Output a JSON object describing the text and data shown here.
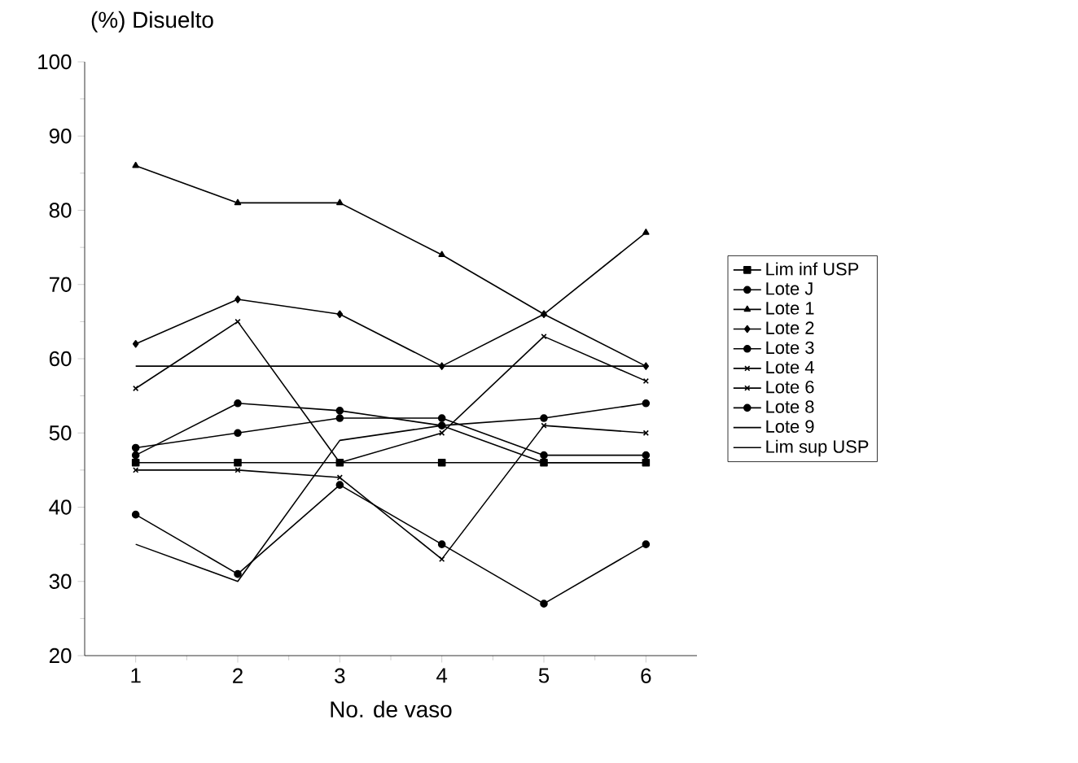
{
  "chart_data": {
    "type": "line",
    "ylabel": "(%) Disuelto",
    "xlabel": "No. de vaso",
    "x": [
      1,
      2,
      3,
      4,
      5,
      6
    ],
    "xlim": [
      0.5,
      6.5
    ],
    "xticks": [
      1,
      2,
      3,
      4,
      5,
      6
    ],
    "ylim": [
      20,
      100
    ],
    "yticks": [
      20,
      30,
      40,
      50,
      60,
      70,
      80,
      90,
      100
    ],
    "grid": false,
    "legend": "right",
    "series": [
      {
        "name": "Lim inf USP",
        "color": "#000000",
        "marker": "square",
        "values": [
          46,
          46,
          46,
          46,
          46,
          46
        ]
      },
      {
        "name": "Lote J",
        "color": "#000000",
        "marker": "circle",
        "values": [
          48,
          50,
          52,
          52,
          47,
          47
        ]
      },
      {
        "name": "Lote 1",
        "color": "#000000",
        "marker": "triangle",
        "values": [
          86,
          81,
          81,
          74,
          66,
          77
        ]
      },
      {
        "name": "Lote 2",
        "color": "#000000",
        "marker": "diamond",
        "values": [
          62,
          68,
          66,
          59,
          66,
          59
        ]
      },
      {
        "name": "Lote 3",
        "color": "#000000",
        "marker": "circle",
        "values": [
          39,
          31,
          43,
          35,
          27,
          35
        ]
      },
      {
        "name": "Lote 4",
        "color": "#000000",
        "marker": "cross",
        "values": [
          56,
          65,
          46,
          50,
          63,
          57
        ]
      },
      {
        "name": "Lote 6",
        "color": "#000000",
        "marker": "cross",
        "values": [
          45,
          45,
          44,
          33,
          51,
          50
        ]
      },
      {
        "name": "Lote 8",
        "color": "#000000",
        "marker": "circle",
        "values": [
          47,
          54,
          53,
          51,
          52,
          54
        ]
      },
      {
        "name": "Lote 9",
        "color": "#000000",
        "marker": "none",
        "values": [
          35,
          30,
          49,
          51,
          46,
          46
        ]
      },
      {
        "name": "Lim sup USP",
        "color": "#000000",
        "marker": "none",
        "values": [
          59,
          59,
          59,
          59,
          59,
          59
        ]
      }
    ]
  }
}
